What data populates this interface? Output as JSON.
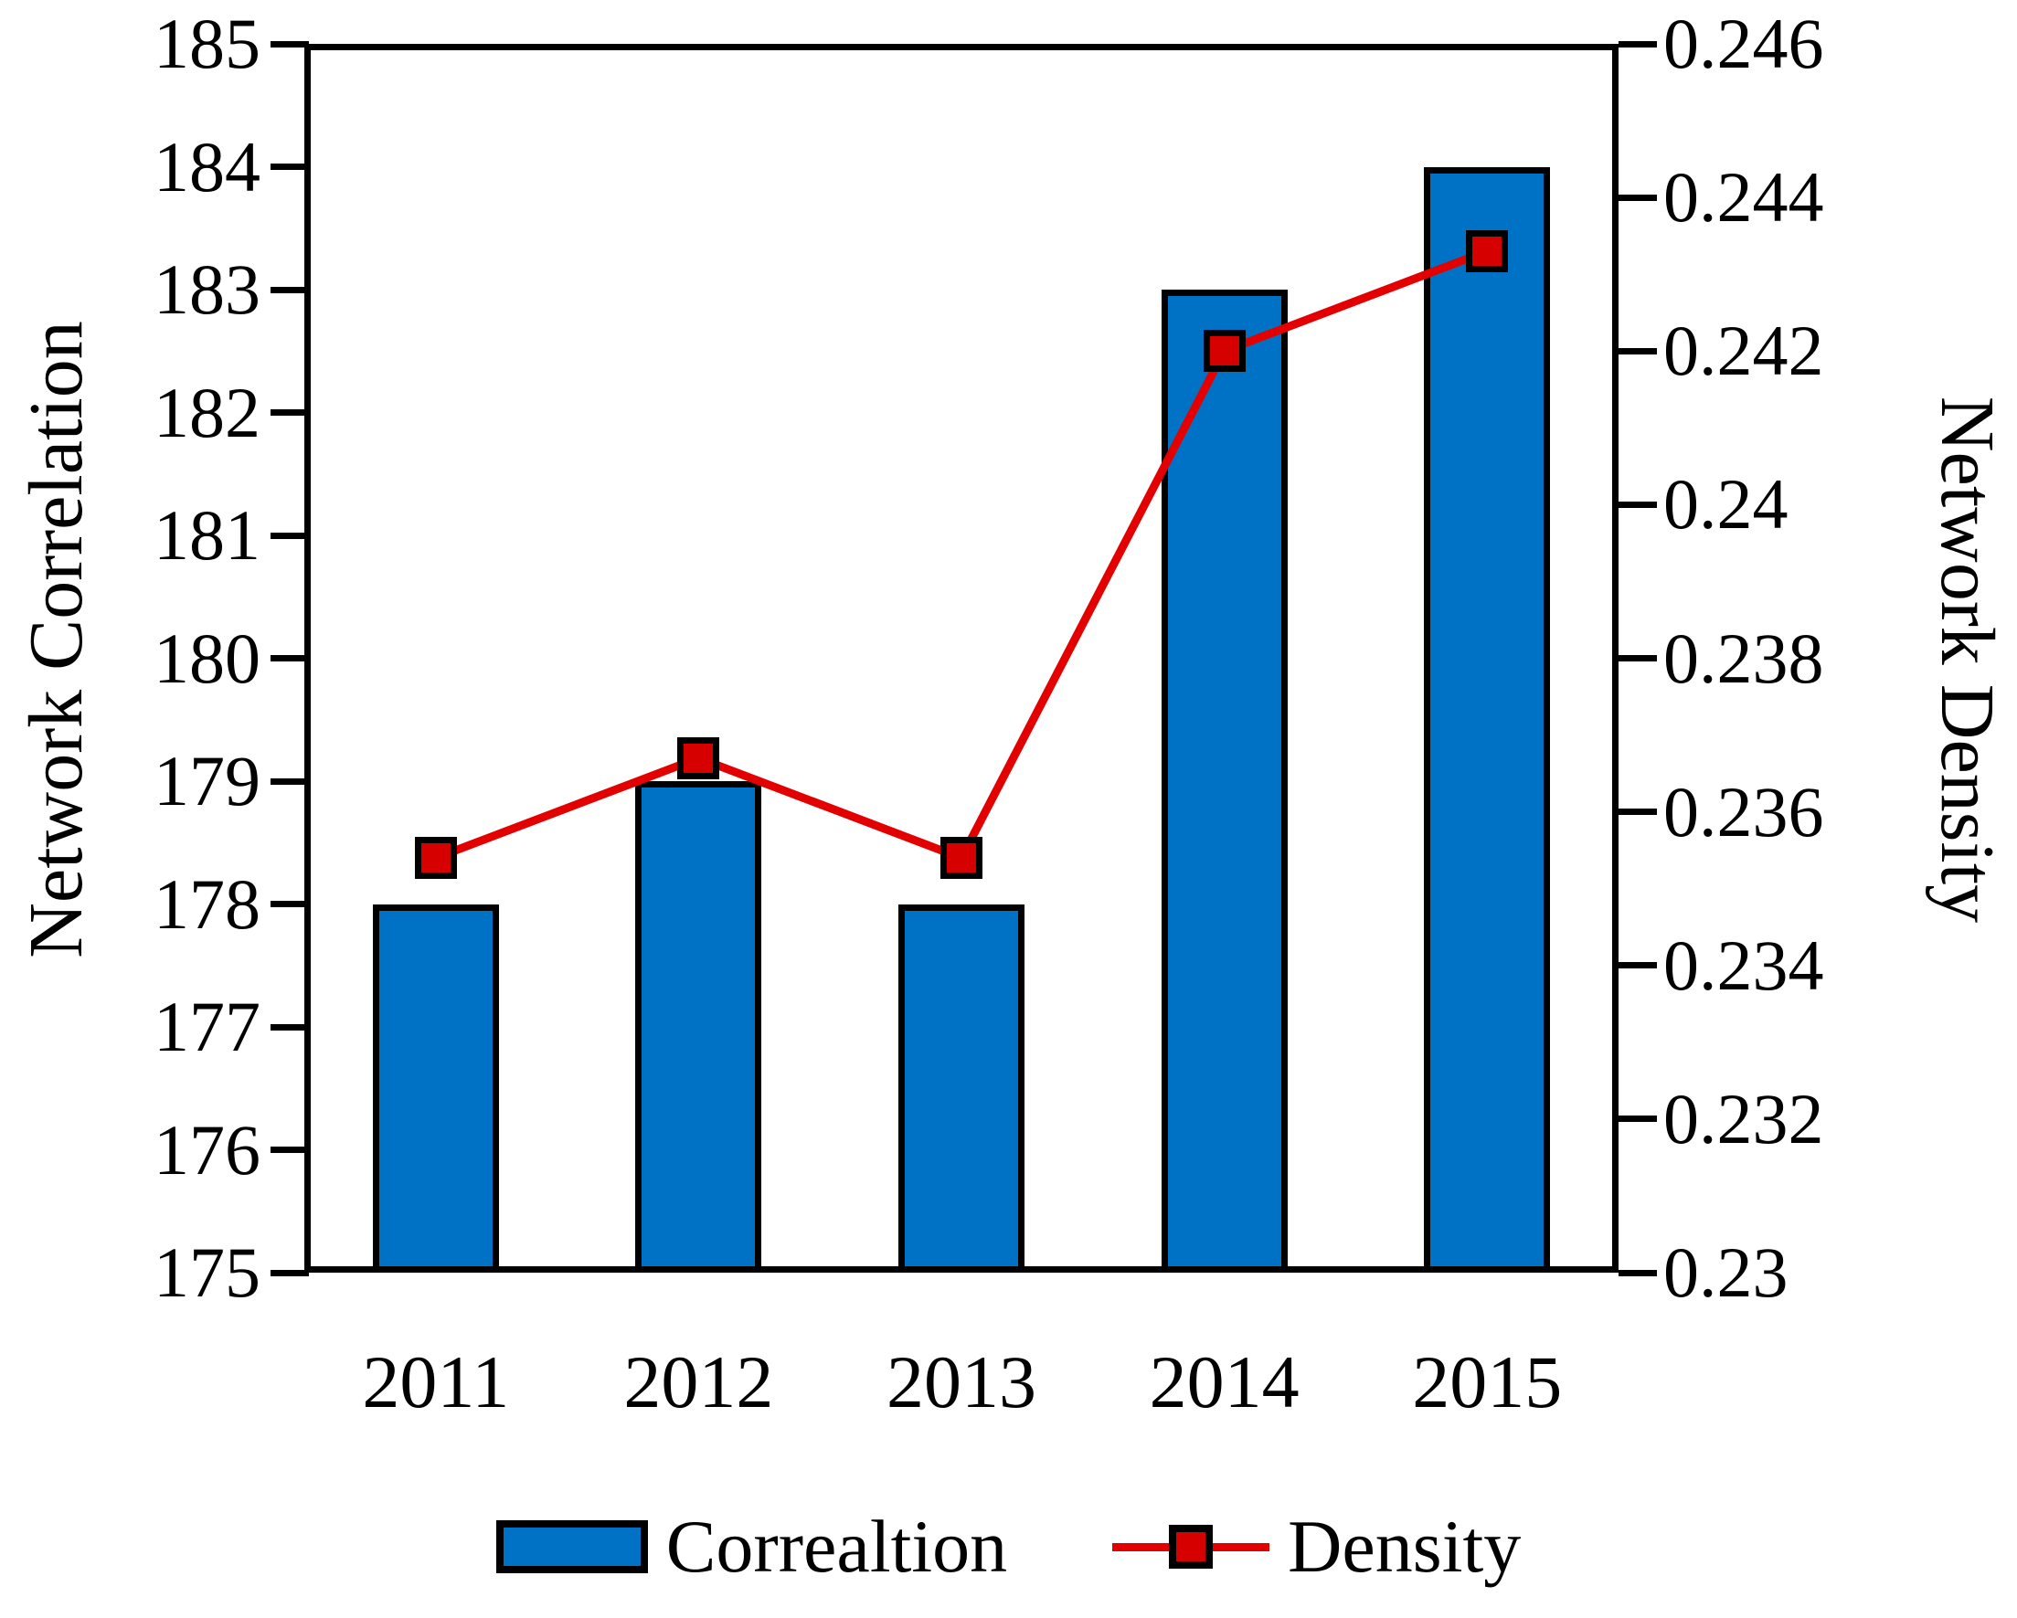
{
  "chart_data": {
    "type": "bar+line",
    "categories": [
      "2011",
      "2012",
      "2013",
      "2014",
      "2015"
    ],
    "series": [
      {
        "name": "Correaltion",
        "type": "bar",
        "axis": "left",
        "values": [
          178,
          179,
          178,
          183,
          184
        ]
      },
      {
        "name": "Density",
        "type": "line",
        "axis": "right",
        "values": [
          0.2354,
          0.2367,
          0.2354,
          0.242,
          0.2433
        ]
      }
    ],
    "left_axis": {
      "label": "Network Correlation",
      "min": 175,
      "max": 185,
      "tick_step": 1,
      "tick_labels": [
        "185",
        "184",
        "183",
        "182",
        "181",
        "180",
        "179",
        "178",
        "177",
        "176",
        "175"
      ]
    },
    "right_axis": {
      "label": "Network Density",
      "min": 0.23,
      "max": 0.246,
      "tick_step": 0.002,
      "tick_labels": [
        "0.246",
        "0.244",
        "0.242",
        "0.24",
        "0.238",
        "0.236",
        "0.234",
        "0.232",
        "0.23"
      ]
    },
    "legend": {
      "position": "bottom",
      "items": [
        "Correaltion",
        "Density"
      ]
    },
    "grid": false
  },
  "colors": {
    "bar_fill": "#0072C6",
    "bar_border": "#000000",
    "line": "#E30000",
    "marker_fill": "#D60000",
    "marker_border": "#000000",
    "axis": "#000000",
    "background": "#FFFFFF"
  }
}
